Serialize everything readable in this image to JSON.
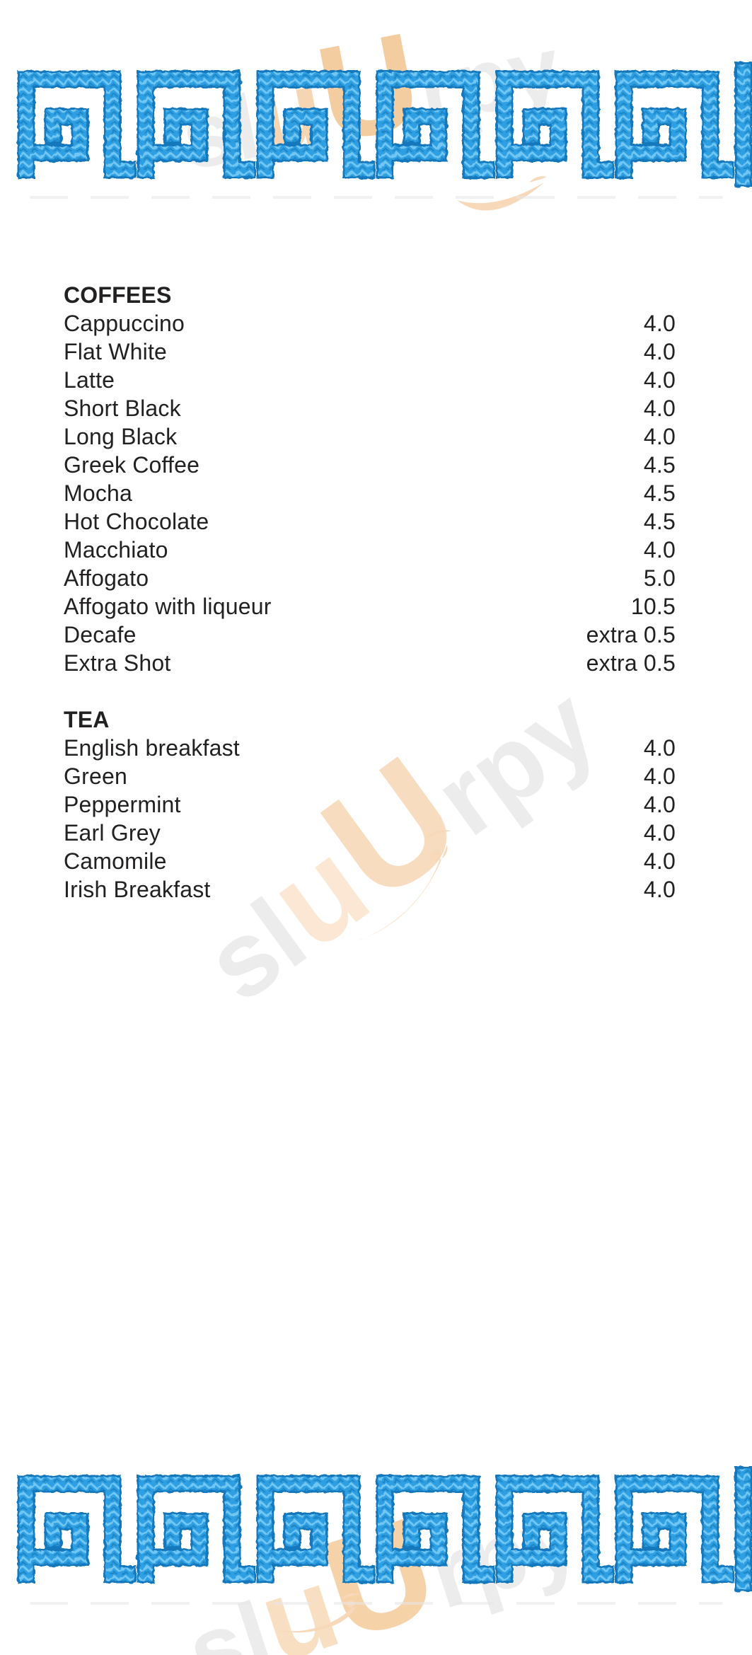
{
  "page": {
    "background": "#ffffff",
    "text_color": "#232020"
  },
  "decorations": {
    "greek_key_border": {
      "units": 6,
      "pitch": 169,
      "color_edge": "#1878bc",
      "color_fill": "#2f9fe2",
      "color_highlight": "#72c7f2",
      "color_shadow": "#1e86c6",
      "positions": [
        "top",
        "bottom"
      ]
    },
    "watermark": {
      "text": "sluUrpy",
      "letters": [
        {
          "ch": "s",
          "tone": "gray",
          "size": "base"
        },
        {
          "ch": "l",
          "tone": "gray",
          "size": "base"
        },
        {
          "ch": "u",
          "tone": "peach",
          "size": "big"
        },
        {
          "ch": "U",
          "tone": "peach_strong",
          "size": "bigger"
        },
        {
          "ch": "r",
          "tone": "gray",
          "size": "base"
        },
        {
          "ch": "p",
          "tone": "gray",
          "size": "base"
        },
        {
          "ch": "y",
          "tone": "gray",
          "size": "base"
        }
      ],
      "colors": {
        "gray": "#ececec",
        "peach": "#f9dfc2",
        "peach_strong": "#f5d2a8",
        "swoosh": "#f7d9ba"
      }
    }
  },
  "menu": {
    "sections": [
      {
        "heading": "COFFEES",
        "items": [
          {
            "name": "Cappuccino",
            "price": "4.0"
          },
          {
            "name": "Flat White",
            "price": "4.0"
          },
          {
            "name": "Latte",
            "price": "4.0"
          },
          {
            "name": "Short Black",
            "price": "4.0"
          },
          {
            "name": "Long Black",
            "price": "4.0"
          },
          {
            "name": "Greek Coffee",
            "price": "4.5"
          },
          {
            "name": "Mocha",
            "price": "4.5"
          },
          {
            "name": "Hot Chocolate",
            "price": "4.5"
          },
          {
            "name": "Macchiato",
            "price": "4.0"
          },
          {
            "name": "Affogato",
            "price": "5.0"
          },
          {
            "name": "Affogato with liqueur",
            "price": "10.5"
          },
          {
            "name": "Decafe",
            "price": "extra 0.5"
          },
          {
            "name": "Extra Shot",
            "price": "extra 0.5"
          }
        ]
      },
      {
        "heading": "TEA",
        "items": [
          {
            "name": "English breakfast",
            "price": "4.0"
          },
          {
            "name": "Green",
            "price": "4.0"
          },
          {
            "name": "Peppermint",
            "price": "4.0"
          },
          {
            "name": "Earl Grey",
            "price": "4.0"
          },
          {
            "name": "Camomile",
            "price": "4.0"
          },
          {
            "name": "Irish Breakfast",
            "price": "4.0"
          }
        ]
      }
    ]
  }
}
